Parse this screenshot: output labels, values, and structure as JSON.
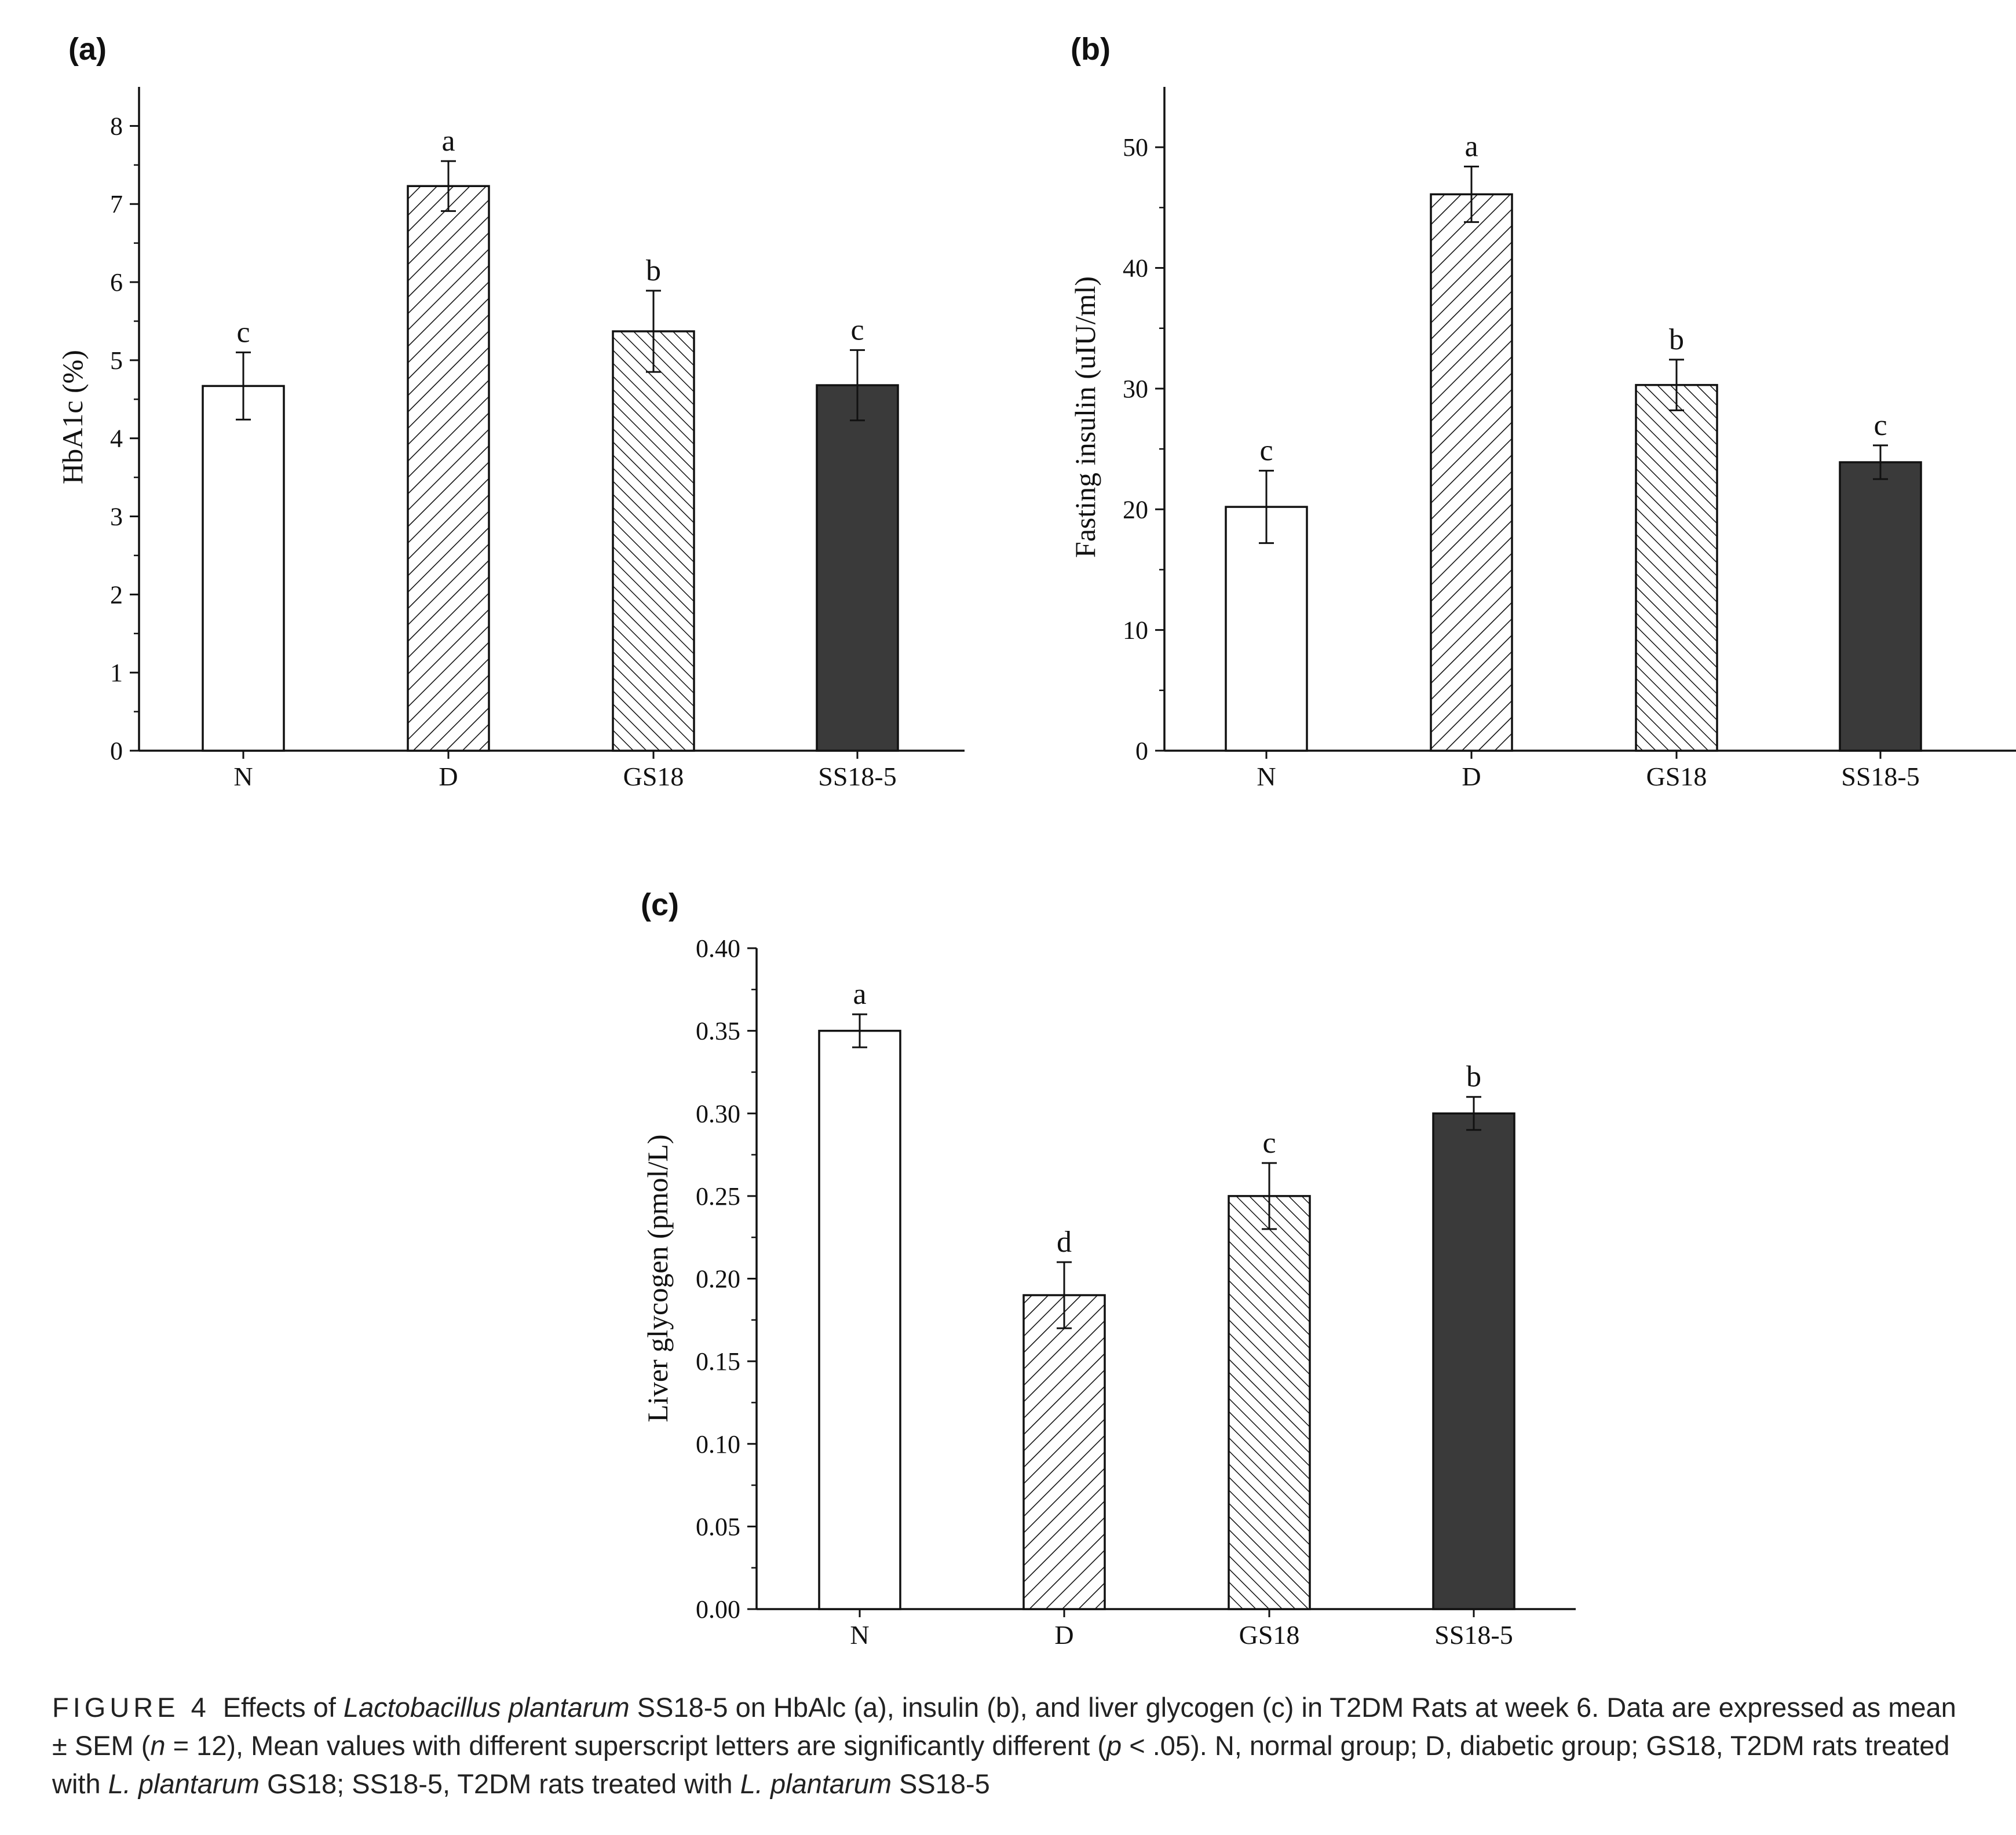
{
  "colors": {
    "N": "#ffffff",
    "D": "hatch-forward",
    "GS18": "hatch-back",
    "SS18-5": "#3a3a3a",
    "axis": "#111111"
  },
  "chart_data": [
    {
      "panel": "(a)",
      "type": "bar",
      "title": "",
      "xlabel": "",
      "ylabel": "HbA1c (%)",
      "categories": [
        "N",
        "D",
        "GS18",
        "SS18-5"
      ],
      "values": [
        4.67,
        7.23,
        5.37,
        4.68
      ],
      "errors": [
        0.43,
        0.32,
        0.52,
        0.45
      ],
      "significance": [
        "c",
        "a",
        "b",
        "c"
      ],
      "ylim": [
        0,
        8.5
      ],
      "yticks": [
        0,
        1,
        2,
        3,
        4,
        5,
        6,
        7,
        8
      ],
      "tick_labels": [
        "0",
        "1",
        "2",
        "3",
        "4",
        "5",
        "6",
        "7",
        "8"
      ],
      "grid": false,
      "legend": "none"
    },
    {
      "panel": "(b)",
      "type": "bar",
      "title": "",
      "xlabel": "",
      "ylabel": "Fasting insulin (uIU/ml)",
      "categories": [
        "N",
        "D",
        "GS18",
        "SS18-5"
      ],
      "values": [
        20.2,
        46.1,
        30.3,
        23.9
      ],
      "errors": [
        3.0,
        2.3,
        2.1,
        1.4
      ],
      "significance": [
        "c",
        "a",
        "b",
        "c"
      ],
      "ylim": [
        0,
        55
      ],
      "yticks": [
        0,
        10,
        20,
        30,
        40,
        50
      ],
      "tick_labels": [
        "0",
        "10",
        "20",
        "30",
        "40",
        "50"
      ],
      "grid": false,
      "legend": "none"
    },
    {
      "panel": "(c)",
      "type": "bar",
      "title": "",
      "xlabel": "",
      "ylabel": "Liver glycogen (pmol/L)",
      "categories": [
        "N",
        "D",
        "GS18",
        "SS18-5"
      ],
      "values": [
        0.35,
        0.19,
        0.25,
        0.3
      ],
      "errors": [
        0.01,
        0.02,
        0.02,
        0.01
      ],
      "significance": [
        "a",
        "d",
        "c",
        "b"
      ],
      "ylim": [
        0,
        0.4
      ],
      "yticks": [
        0,
        0.05,
        0.1,
        0.15,
        0.2,
        0.25,
        0.3,
        0.35,
        0.4
      ],
      "tick_labels": [
        "0.00",
        "0.05",
        "0.10",
        "0.15",
        "0.20",
        "0.25",
        "0.30",
        "0.35",
        "0.40"
      ],
      "grid": false,
      "legend": "none"
    }
  ],
  "caption": {
    "figure_label": "FIGURE 4",
    "part1": "Effects of ",
    "species1": "Lactobacillus plantarum",
    "part2": " SS18-5 on HbAlc (a), insulin (b), and liver glycogen (c) in T2DM Rats at week 6. Data are expressed as mean ± SEM (",
    "n_var": "n",
    "part3": " = 12), Mean values with different superscript letters are significantly different (",
    "p_var": "p",
    "part4": " < .05). N, normal group; D, diabetic group; GS18, T2DM rats treated with ",
    "species2": "L. plantarum",
    "part5": " GS18; SS18-5, T2DM rats treated with ",
    "species3": "L. plantarum",
    "part6": " SS18-5"
  }
}
